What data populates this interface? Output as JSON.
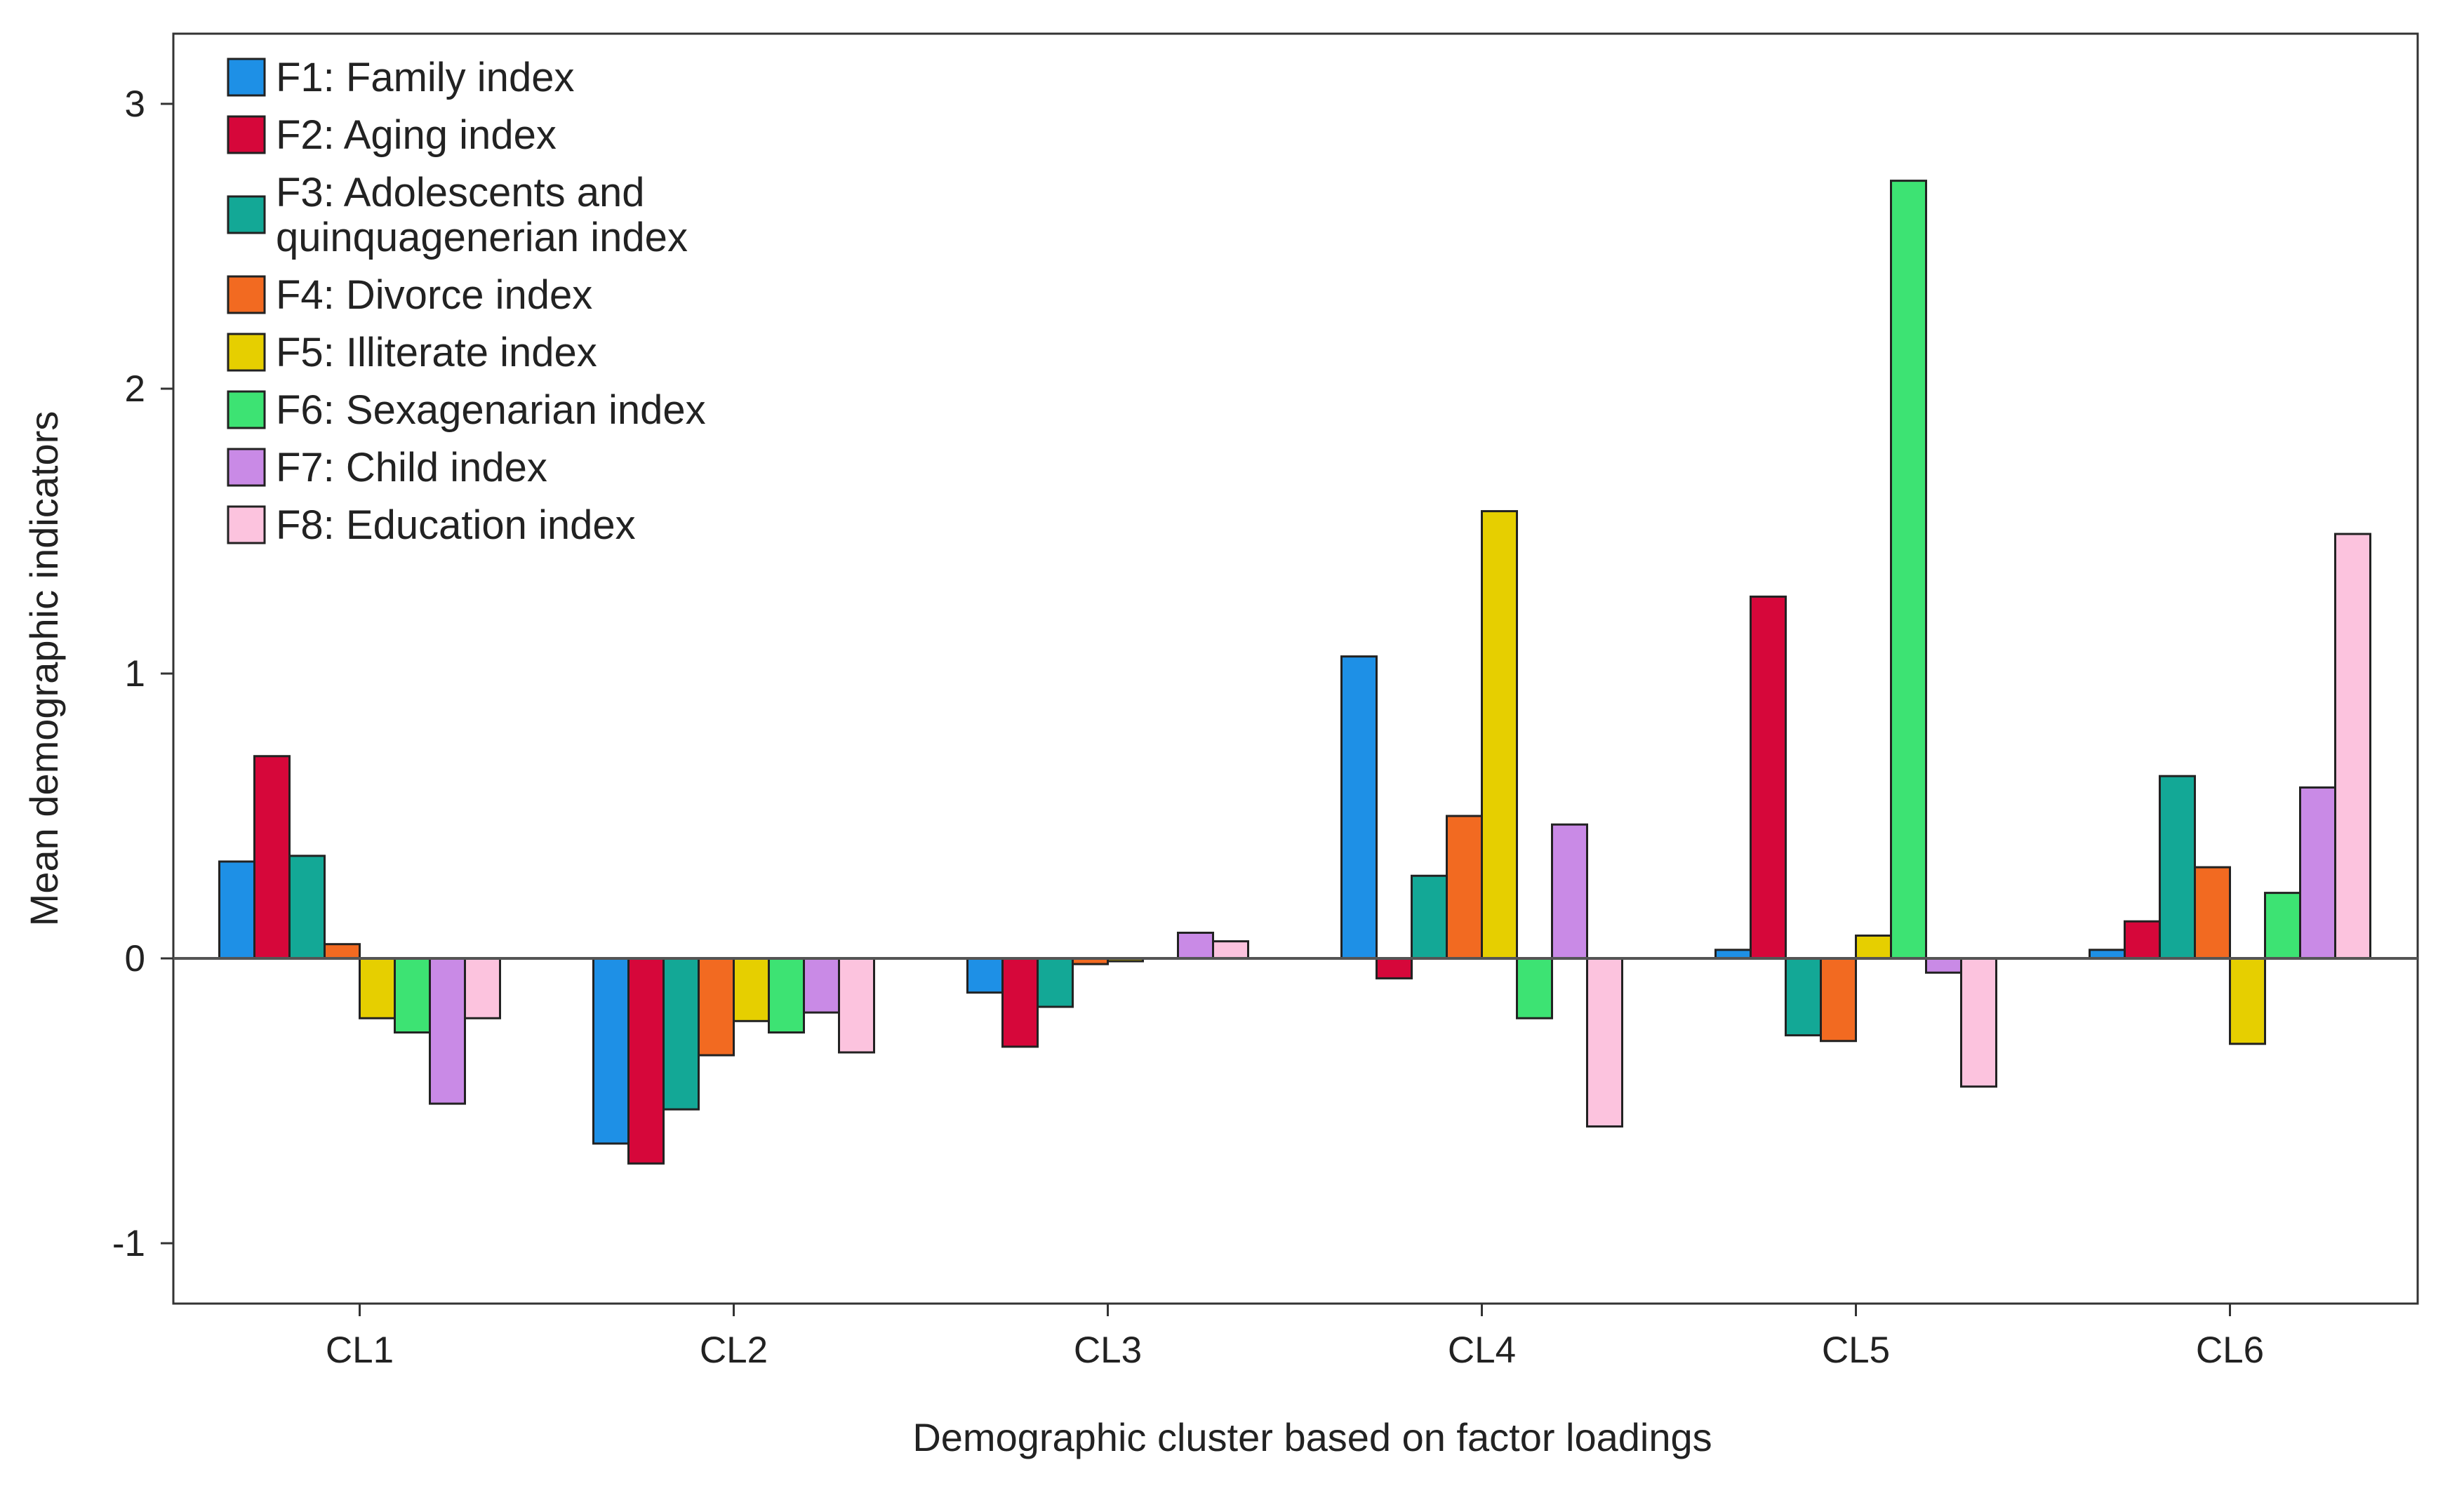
{
  "chart_data": {
    "type": "bar",
    "title": "",
    "xlabel": "Demographic cluster based on factor loadings",
    "ylabel": "Mean demographic indicators",
    "ylim": [
      -1.2,
      3.2
    ],
    "yticks": [
      -1,
      0,
      1,
      2,
      3
    ],
    "grid": false,
    "legend_position": "top-left",
    "categories": [
      "CL1",
      "CL2",
      "CL3",
      "CL4",
      "CL5",
      "CL6"
    ],
    "series": [
      {
        "name": "F1: Family index",
        "color": "#1e90e6",
        "values": [
          0.34,
          -0.65,
          -0.12,
          1.06,
          0.03,
          0.03
        ]
      },
      {
        "name": "F2: Aging index",
        "color": "#d6073a",
        "values": [
          0.71,
          -0.72,
          -0.31,
          -0.07,
          1.27,
          0.13
        ]
      },
      {
        "name": "F3: Adolescents and quinquagenerian index",
        "color": "#13a896",
        "values": [
          0.36,
          -0.53,
          -0.17,
          0.29,
          -0.27,
          0.64
        ]
      },
      {
        "name": "F4: Divorce index",
        "color": "#f26a21",
        "values": [
          0.05,
          -0.34,
          -0.02,
          0.5,
          -0.29,
          0.32
        ]
      },
      {
        "name": "F5: Illiterate index",
        "color": "#e6cf00",
        "values": [
          -0.21,
          -0.22,
          -0.01,
          1.57,
          0.08,
          -0.3
        ]
      },
      {
        "name": "F6: Sexagenarian index",
        "color": "#3de373",
        "values": [
          -0.26,
          -0.26,
          0.0,
          -0.21,
          2.73,
          0.23
        ]
      },
      {
        "name": "F7: Child index",
        "color": "#c98ae6",
        "values": [
          -0.51,
          -0.19,
          0.09,
          0.47,
          -0.05,
          0.6
        ]
      },
      {
        "name": "F8: Education index",
        "color": "#fcc3de",
        "values": [
          -0.21,
          -0.33,
          0.06,
          -0.59,
          -0.45,
          1.49
        ]
      }
    ],
    "legend_lines": [
      [
        "F1: Family index"
      ],
      [
        "F2: Aging index"
      ],
      [
        "F3: Adolescents and",
        "quinquagenerian index"
      ],
      [
        "F4: Divorce index"
      ],
      [
        "F5: Illiterate index"
      ],
      [
        "F6: Sexagenarian index"
      ],
      [
        "F7: Child index"
      ],
      [
        "F8: Education index"
      ]
    ]
  }
}
